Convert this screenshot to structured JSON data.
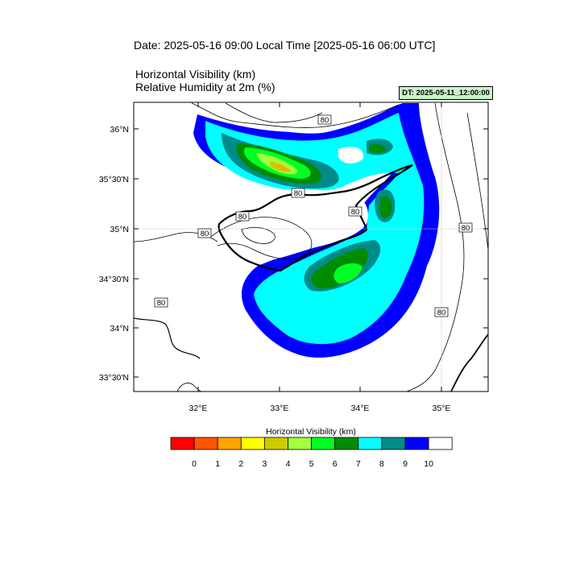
{
  "header": {
    "date_title": "Date: 2025-05-16  09:00 Local Time [2025-05-16  06:00 UTC]",
    "variable_1": "Horizontal Visibility   (km)",
    "variable_2": "Relative Humidity at 2m   (%)",
    "dt_badge": "DT: 2025-05-11_12:00:00"
  },
  "map": {
    "lat_labels": [
      "36°N",
      "35°30'N",
      "35°N",
      "34°30'N",
      "34°N",
      "33°30'N"
    ],
    "lon_labels": [
      "32°E",
      "33°E",
      "34°E",
      "35°E"
    ],
    "contour_labels": [
      "80",
      "80",
      "80",
      "80",
      "80",
      "80",
      "80",
      "80"
    ]
  },
  "colorbar": {
    "title": "Horizontal Visibility  (km)",
    "ticks": [
      "0",
      "1",
      "2",
      "3",
      "4",
      "5",
      "6",
      "7",
      "8",
      "9",
      "10"
    ],
    "colors": [
      "#ff0000",
      "#ff5500",
      "#ffa500",
      "#ffff00",
      "#cccc00",
      "#a4ff40",
      "#00ff22",
      "#008b00",
      "#00ffff",
      "#008b8b",
      "#0000ff",
      "#ffffff"
    ]
  }
}
